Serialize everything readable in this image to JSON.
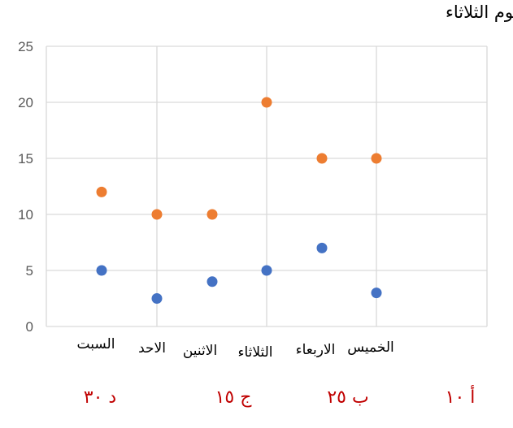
{
  "question": "في الرسم البياني التالي ما اجمالي الاستهلاك يوم الثلاثاء",
  "chart_data": {
    "type": "scatter",
    "categories": [
      "السبت",
      "الاحد",
      "الاثنين",
      "الثلاثاء",
      "الاربعاء",
      "الخميس"
    ],
    "y_ticks": [
      "0",
      "5",
      "10",
      "15",
      "20",
      "25"
    ],
    "ylim": [
      0,
      25
    ],
    "grid": true,
    "legend": "none",
    "series": [
      {
        "color": "#ed7d31",
        "values": [
          12,
          10,
          10,
          20,
          15,
          15
        ]
      },
      {
        "color": "#4472c4",
        "values": [
          5,
          2.5,
          4,
          5,
          7,
          3
        ]
      }
    ]
  },
  "options": [
    {
      "label": "د ٣٠"
    },
    {
      "label": "ج ١٥"
    },
    {
      "label": "ب ٢٥"
    },
    {
      "label": "أ ١٠"
    }
  ]
}
